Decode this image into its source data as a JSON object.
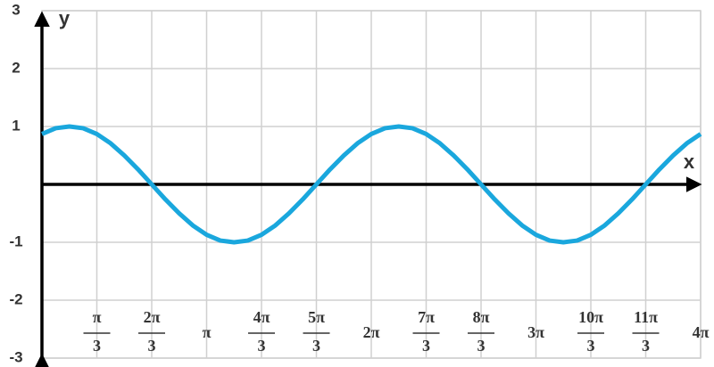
{
  "chart_data": {
    "type": "line",
    "x_label": "x",
    "y_label": "y",
    "x": [
      0,
      0.2618,
      0.5236,
      0.7854,
      1.0472,
      1.309,
      1.5708,
      1.8326,
      2.0944,
      2.3562,
      2.618,
      2.8798,
      3.1416,
      3.4034,
      3.6652,
      3.927,
      4.1888,
      4.4506,
      4.7124,
      4.9742,
      5.236,
      5.4978,
      5.7596,
      6.0214,
      6.2832,
      6.545,
      6.8068,
      7.0686,
      7.3304,
      7.5922,
      7.854,
      8.1158,
      8.3776,
      8.6394,
      8.9012,
      9.163,
      9.4248,
      9.6866,
      9.9484,
      10.2102,
      10.472,
      10.7338,
      10.9956,
      11.2574,
      11.5192,
      11.781,
      12.0428,
      12.3046,
      12.5664
    ],
    "series": [
      {
        "color": "#1aa7dd",
        "values": [
          0.87,
          0.97,
          1,
          0.97,
          0.87,
          0.71,
          0.5,
          0.26,
          0,
          -0.26,
          -0.5,
          -0.71,
          -0.87,
          -0.97,
          -1,
          -0.97,
          -0.87,
          -0.71,
          -0.5,
          -0.26,
          0,
          0.26,
          0.5,
          0.71,
          0.87,
          0.97,
          1,
          0.97,
          0.87,
          0.71,
          0.5,
          0.26,
          0,
          -0.26,
          -0.5,
          -0.71,
          -0.87,
          -0.97,
          -1,
          -0.97,
          -0.87,
          -0.71,
          -0.5,
          -0.26,
          0,
          0.26,
          0.5,
          0.71,
          0.87
        ]
      }
    ],
    "xlim": [
      0,
      12.5664
    ],
    "xticks": [
      {
        "value": 1.0472,
        "label": "π/3"
      },
      {
        "value": 2.0944,
        "label": "2π/3"
      },
      {
        "value": 3.1416,
        "label": "π"
      },
      {
        "value": 4.1888,
        "label": "4π/3"
      },
      {
        "value": 5.236,
        "label": "5π/3"
      },
      {
        "value": 6.2832,
        "label": "2π"
      },
      {
        "value": 7.3304,
        "label": "7π/3"
      },
      {
        "value": 8.3776,
        "label": "8π/3"
      },
      {
        "value": 9.4248,
        "label": "3π"
      },
      {
        "value": 10.472,
        "label": "10π/3"
      },
      {
        "value": 11.5192,
        "label": "11π/3"
      },
      {
        "value": 12.5664,
        "label": "4π"
      }
    ],
    "ylim": [
      -3,
      3
    ],
    "yticks": [
      -3,
      -2,
      -1,
      1,
      2,
      3
    ],
    "grid": true
  }
}
